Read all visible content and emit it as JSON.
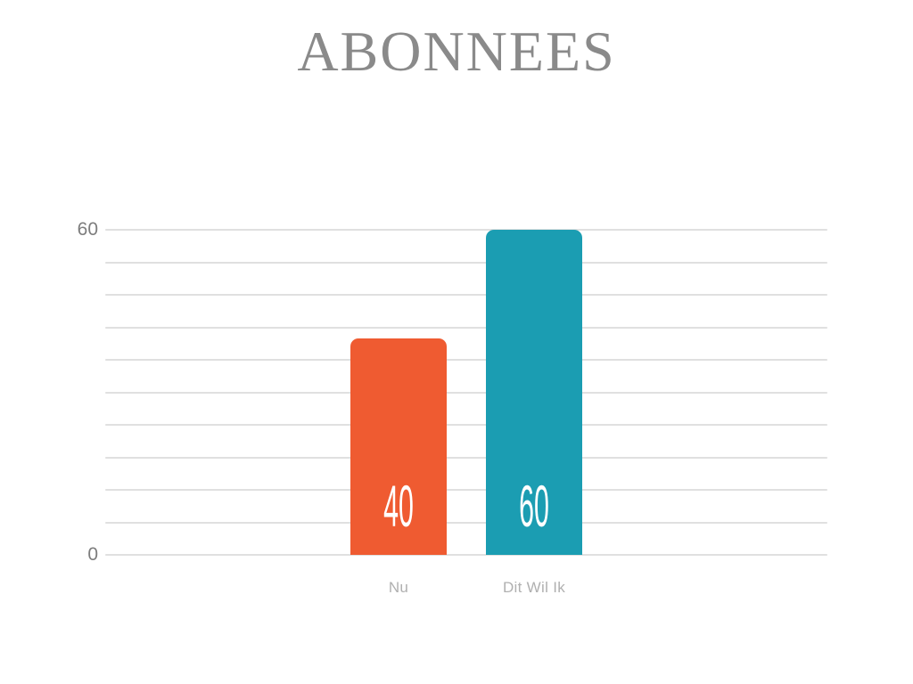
{
  "page": {
    "background": "#ffffff"
  },
  "chart_data": {
    "type": "bar",
    "title": "ABONNEES",
    "categories": [
      "Nu",
      "Dit Wil Ik"
    ],
    "values": [
      40,
      60
    ],
    "value_labels": [
      "40",
      "60"
    ],
    "bar_colors": [
      "#EF5B31",
      "#1B9DB2"
    ],
    "xlabel": "",
    "ylabel": "",
    "ylim": [
      0,
      60
    ],
    "ytick_step": 6,
    "yticks_labeled": [
      {
        "value": 60,
        "label": "60"
      },
      {
        "value": 0,
        "label": "0"
      }
    ],
    "grid": true,
    "legend_position": "none",
    "colors": {
      "title": "#8a8a8a",
      "gridline": "#e0e0e0",
      "ytick_label": "#7d7d7d",
      "category_label": "#b0b0b0",
      "value_label": "#ffffff"
    }
  }
}
